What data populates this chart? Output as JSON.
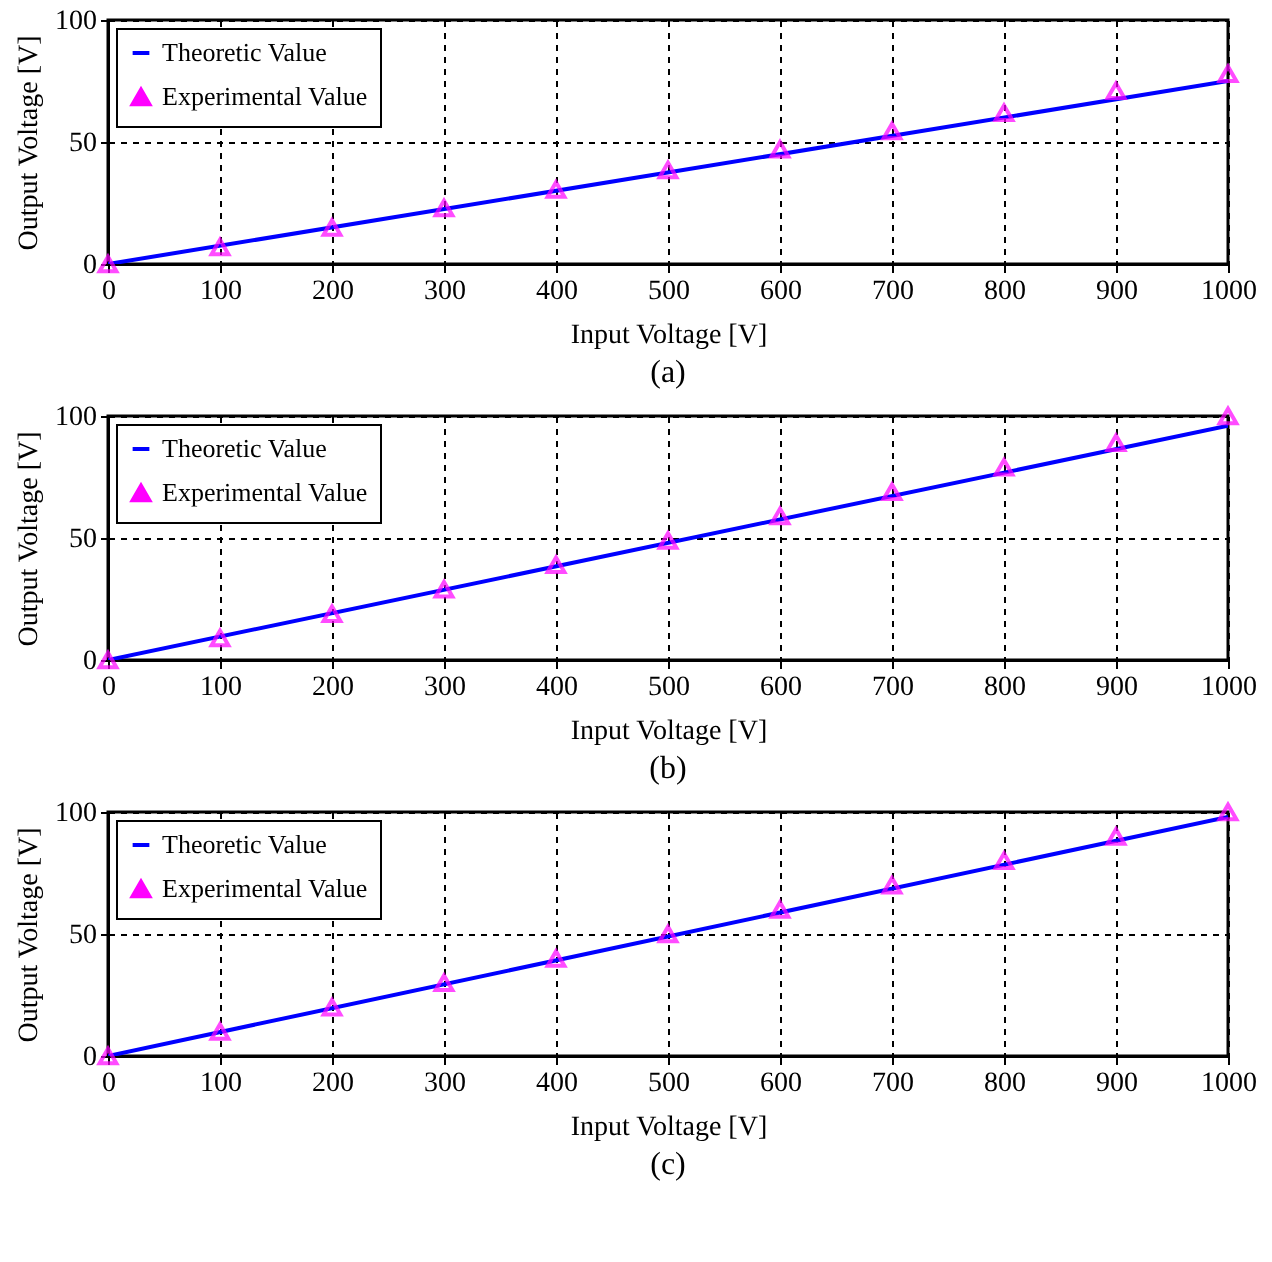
{
  "chart_data": [
    {
      "type": "line",
      "xlabel": "Input Voltage [V]",
      "ylabel": "Output Voltage [V]",
      "annotations": [
        "(a)"
      ],
      "xlim": [
        0,
        1000
      ],
      "ylim": [
        0,
        100
      ],
      "xticks": [
        0,
        100,
        200,
        300,
        400,
        500,
        600,
        700,
        800,
        900,
        1000
      ],
      "yticks": [
        0,
        50,
        100
      ],
      "grid": true,
      "legend": "top left",
      "series": [
        {
          "name": "Theoretic Value",
          "type": "line",
          "color": "#0000ff",
          "line_style": "solid",
          "marker": "none",
          "x": [
            0,
            1000
          ],
          "values": [
            0,
            75
          ]
        },
        {
          "name": "Experimental Value",
          "type": "scatter",
          "color": "#ff00ff",
          "marker": "triangle",
          "x": [
            0,
            100,
            200,
            300,
            400,
            500,
            600,
            700,
            800,
            900,
            1000
          ],
          "values": [
            0,
            7,
            15,
            23,
            30.5,
            38.5,
            47,
            54.5,
            62,
            71,
            78
          ]
        }
      ]
    },
    {
      "type": "line",
      "xlabel": "Input Voltage [V]",
      "ylabel": "Output Voltage [V]",
      "annotations": [
        "(b)"
      ],
      "xlim": [
        0,
        1000
      ],
      "ylim": [
        0,
        100
      ],
      "xticks": [
        0,
        100,
        200,
        300,
        400,
        500,
        600,
        700,
        800,
        900,
        1000
      ],
      "yticks": [
        0,
        50,
        100
      ],
      "grid": true,
      "legend": "top left",
      "series": [
        {
          "name": "Theoretic Value",
          "type": "line",
          "color": "#0000ff",
          "line_style": "solid",
          "marker": "none",
          "x": [
            0,
            1000
          ],
          "values": [
            0,
            96
          ]
        },
        {
          "name": "Experimental Value",
          "type": "scatter",
          "color": "#ff00ff",
          "marker": "triangle",
          "x": [
            0,
            100,
            200,
            300,
            400,
            500,
            600,
            700,
            800,
            900,
            1000
          ],
          "values": [
            0,
            9,
            19,
            29,
            39,
            49,
            59,
            69,
            79,
            89,
            100
          ]
        }
      ]
    },
    {
      "type": "line",
      "xlabel": "Input Voltage [V]",
      "ylabel": "Output Voltage [V]",
      "annotations": [
        "(c)"
      ],
      "xlim": [
        0,
        1000
      ],
      "ylim": [
        0,
        100
      ],
      "xticks": [
        0,
        100,
        200,
        300,
        400,
        500,
        600,
        700,
        800,
        900,
        1000
      ],
      "yticks": [
        0,
        50,
        100
      ],
      "grid": true,
      "legend": "top left",
      "series": [
        {
          "name": "Theoretic Value",
          "type": "line",
          "color": "#0000ff",
          "line_style": "solid",
          "marker": "none",
          "x": [
            0,
            1000
          ],
          "values": [
            0,
            98
          ]
        },
        {
          "name": "Experimental Value",
          "type": "scatter",
          "color": "#ff00ff",
          "marker": "triangle",
          "x": [
            0,
            100,
            200,
            300,
            400,
            500,
            600,
            700,
            800,
            900,
            1000
          ],
          "values": [
            0,
            10,
            20,
            30,
            40,
            50,
            60,
            70,
            80,
            90,
            100
          ]
        }
      ]
    }
  ]
}
